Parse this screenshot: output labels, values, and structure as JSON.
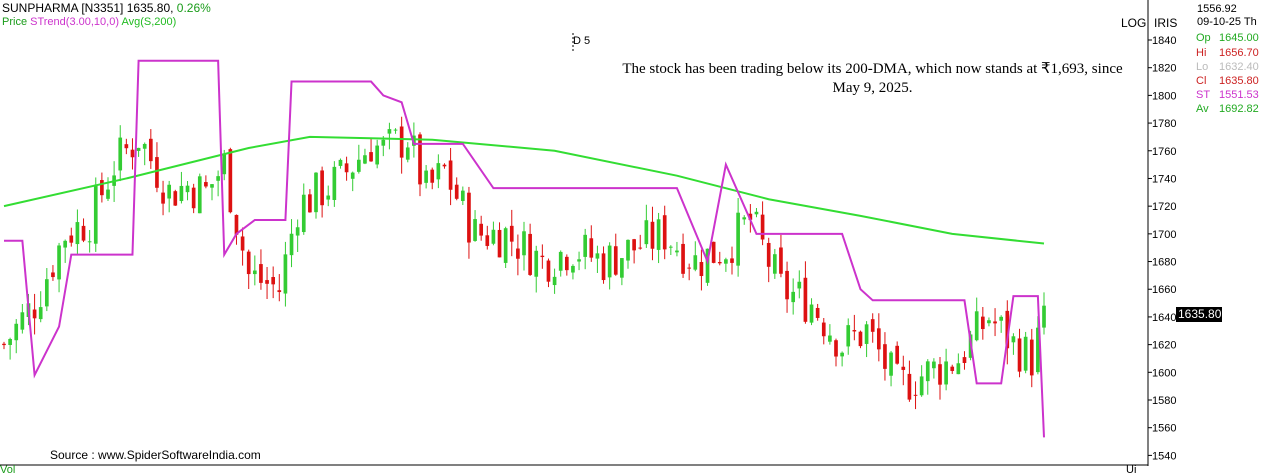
{
  "header": {
    "symbol": "SUNPHARMA [N3351]",
    "price": "1635.80,",
    "change": "0.26%",
    "legend_price": "Price",
    "legend_strend": "STrend(3.00,10,0)",
    "legend_avg": "Avg(S,200)"
  },
  "marker": "D 5",
  "annotation": "The stock has been trading below its 200-DMA, which now stands at ₹1,693,  since May 9, 2025.",
  "source": "Source : www.SpiderSoftwareIndia.com",
  "partial_left": "Vol",
  "partial_right": "Ui",
  "scale_flags": {
    "log": "LOG",
    "iris": "IRIS"
  },
  "info": {
    "top_value": "1556.92",
    "date": "09-10-25 Th",
    "rows": [
      {
        "key": "Op",
        "value": "1645.00",
        "color": "#22aa22"
      },
      {
        "key": "Hi",
        "value": "1656.70",
        "color": "#cc2222"
      },
      {
        "key": "Lo",
        "value": "1632.40",
        "color": "#bbbbbb"
      },
      {
        "key": "Cl",
        "value": "1635.80",
        "color": "#cc2222"
      },
      {
        "key": "ST",
        "value": "1551.53",
        "color": "#cc33cc"
      },
      {
        "key": "Av",
        "value": "1692.82",
        "color": "#22aa22"
      }
    ]
  },
  "last_price_label": "1635.80",
  "colors": {
    "up": "#33cc33",
    "down": "#dd1111",
    "strend": "#cc33cc",
    "avg": "#33dd33"
  },
  "chart_data": {
    "type": "candlestick",
    "title": "",
    "ylim": [
      1535,
      1845
    ],
    "yticks": [
      1540,
      1560,
      1580,
      1600,
      1620,
      1640,
      1660,
      1680,
      1700,
      1720,
      1740,
      1760,
      1780,
      1800,
      1820,
      1840
    ],
    "grid": false,
    "candle_count": 171,
    "anchors": [
      [
        0,
        1620
      ],
      [
        5,
        1650
      ],
      [
        10,
        1700
      ],
      [
        14,
        1710
      ],
      [
        18,
        1750
      ],
      [
        22,
        1770
      ],
      [
        27,
        1730
      ],
      [
        30,
        1735
      ],
      [
        33,
        1730
      ],
      [
        36,
        1750
      ],
      [
        40,
        1670
      ],
      [
        45,
        1660
      ],
      [
        48,
        1720
      ],
      [
        55,
        1740
      ],
      [
        60,
        1765
      ],
      [
        62,
        1760
      ],
      [
        66,
        1770
      ],
      [
        69,
        1730
      ],
      [
        72,
        1745
      ],
      [
        77,
        1700
      ],
      [
        82,
        1700
      ],
      [
        88,
        1680
      ],
      [
        93,
        1690
      ],
      [
        98,
        1680
      ],
      [
        103,
        1690
      ],
      [
        108,
        1700
      ],
      [
        113,
        1680
      ],
      [
        118,
        1690
      ],
      [
        122,
        1710
      ],
      [
        127,
        1660
      ],
      [
        132,
        1650
      ],
      [
        137,
        1620
      ],
      [
        141,
        1630
      ],
      [
        146,
        1590
      ],
      [
        151,
        1600
      ],
      [
        156,
        1610
      ],
      [
        161,
        1640
      ],
      [
        165,
        1620
      ],
      [
        168,
        1610
      ],
      [
        170,
        1636
      ]
    ],
    "strend": [
      [
        0,
        1695
      ],
      [
        3,
        1695
      ],
      [
        5,
        1598
      ],
      [
        9,
        1633
      ],
      [
        11,
        1685
      ],
      [
        21,
        1685
      ],
      [
        22,
        1825
      ],
      [
        35,
        1825
      ],
      [
        36,
        1685
      ],
      [
        38,
        1700
      ],
      [
        41,
        1710
      ],
      [
        46,
        1710
      ],
      [
        47,
        1810
      ],
      [
        60,
        1810
      ],
      [
        62,
        1800
      ],
      [
        65,
        1795
      ],
      [
        67,
        1765
      ],
      [
        75,
        1765
      ],
      [
        80,
        1733
      ],
      [
        110,
        1733
      ],
      [
        115,
        1680
      ],
      [
        118,
        1750
      ],
      [
        123,
        1700
      ],
      [
        137,
        1700
      ],
      [
        140,
        1660
      ],
      [
        142,
        1652
      ],
      [
        157,
        1652
      ],
      [
        159,
        1592
      ],
      [
        163,
        1592
      ],
      [
        165,
        1655
      ],
      [
        169,
        1655
      ],
      [
        170,
        1553
      ],
      [
        171,
        1553
      ]
    ],
    "avg200": [
      [
        0,
        1720
      ],
      [
        20,
        1740
      ],
      [
        40,
        1762
      ],
      [
        50,
        1770
      ],
      [
        70,
        1768
      ],
      [
        90,
        1760
      ],
      [
        110,
        1742
      ],
      [
        125,
        1725
      ],
      [
        140,
        1713
      ],
      [
        155,
        1700
      ],
      [
        170,
        1693
      ]
    ]
  }
}
